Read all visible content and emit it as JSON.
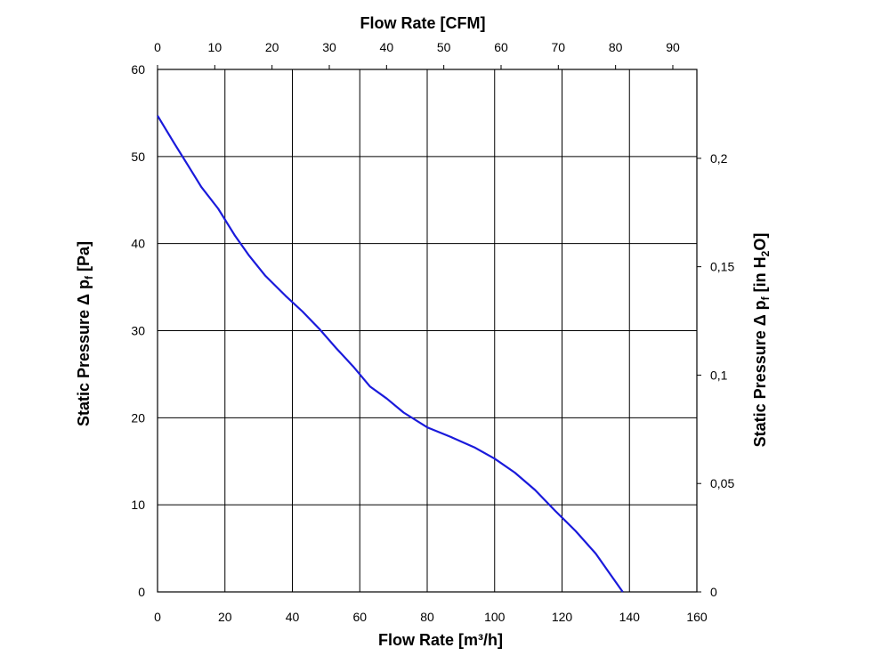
{
  "chart_data": {
    "type": "line",
    "title": "",
    "xlabel": "Flow Rate [m³/h]",
    "ylabel": {
      "base": "Static Pressure Δ p",
      "sub": "f",
      "unit": " [Pa]"
    },
    "x2label": "Flow Rate [CFM]",
    "y2label": {
      "base": "Static Pressure Δ p",
      "sub": "f",
      "unit_pre": " [in H",
      "unit_sub": "2",
      "unit_post": "O]"
    },
    "xlim": [
      0,
      160
    ],
    "ylim": [
      0,
      60
    ],
    "x2lim": [
      0,
      94.2
    ],
    "y2lim": [
      0,
      0.241
    ],
    "grid": true,
    "x_ticks": [
      "0",
      "20",
      "40",
      "60",
      "80",
      "100",
      "120",
      "140",
      "160"
    ],
    "y_ticks": [
      "0",
      "10",
      "20",
      "30",
      "40",
      "50",
      "60"
    ],
    "x2_ticks": [
      "0",
      "10",
      "20",
      "30",
      "40",
      "50",
      "60",
      "70",
      "80",
      "90"
    ],
    "y2_ticks": [
      "0",
      "0,05",
      "0,1",
      "0,15",
      "0,2"
    ],
    "series": [
      {
        "color": "#1a1adb",
        "x": [
          0,
          5,
          9,
          13,
          18,
          23,
          27,
          32,
          38,
          43,
          48,
          53,
          58,
          63,
          68,
          73,
          80,
          87,
          94,
          100,
          106,
          112,
          118,
          124,
          130,
          134,
          138
        ],
        "y": [
          54.7,
          51.5,
          49.0,
          46.5,
          44.0,
          40.9,
          38.7,
          36.3,
          34.0,
          32.2,
          30.2,
          28.0,
          25.9,
          23.6,
          22.2,
          20.6,
          18.9,
          17.8,
          16.6,
          15.3,
          13.7,
          11.7,
          9.3,
          7.0,
          4.4,
          2.2,
          0.0
        ]
      }
    ]
  }
}
